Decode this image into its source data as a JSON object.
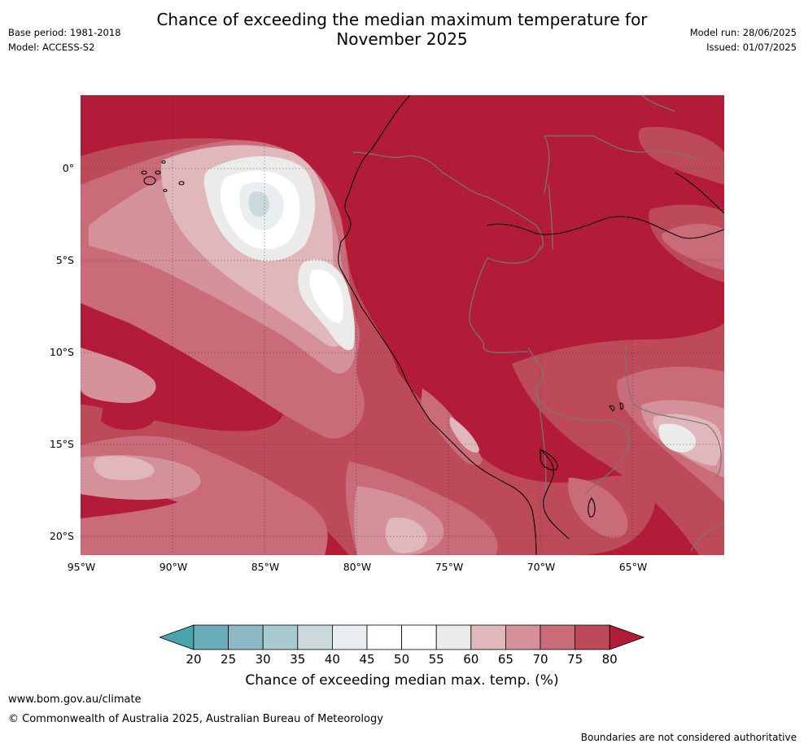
{
  "title_line1": "Chance of exceeding the median maximum temperature for",
  "title_line2": "November 2025",
  "base_period": "Base period: 1981-2018",
  "model": "Model: ACCESS-S2",
  "model_run": "Model run: 28/06/2025",
  "issued": "Issued: 01/07/2025",
  "lat_labels": [
    "0°",
    "5°S",
    "10°S",
    "15°S",
    "20°S"
  ],
  "lon_labels": [
    "95°W",
    "90°W",
    "85°W",
    "80°W",
    "75°W",
    "70°W",
    "65°W"
  ],
  "colorbar": {
    "ticks": [
      "20",
      "25",
      "30",
      "35",
      "40",
      "45",
      "50",
      "55",
      "60",
      "65",
      "70",
      "75",
      "80"
    ],
    "colors": [
      "#4aa3ad",
      "#6aaebb",
      "#8bbac5",
      "#a9cbd0",
      "#cbd9dc",
      "#e9eff1",
      "#ffffff",
      "#ffffff",
      "#ebebea",
      "#e0b8bc",
      "#d4919a",
      "#c96b78",
      "#bd4a58",
      "#b31c38"
    ],
    "label": "Chance of exceeding median max. temp. (%)"
  },
  "footer": {
    "url": "www.bom.gov.au/climate",
    "copyright": "© Commonwealth of Australia 2025, Australian Bureau of Meteorology",
    "disclaimer": "Boundaries are not considered authoritative"
  }
}
